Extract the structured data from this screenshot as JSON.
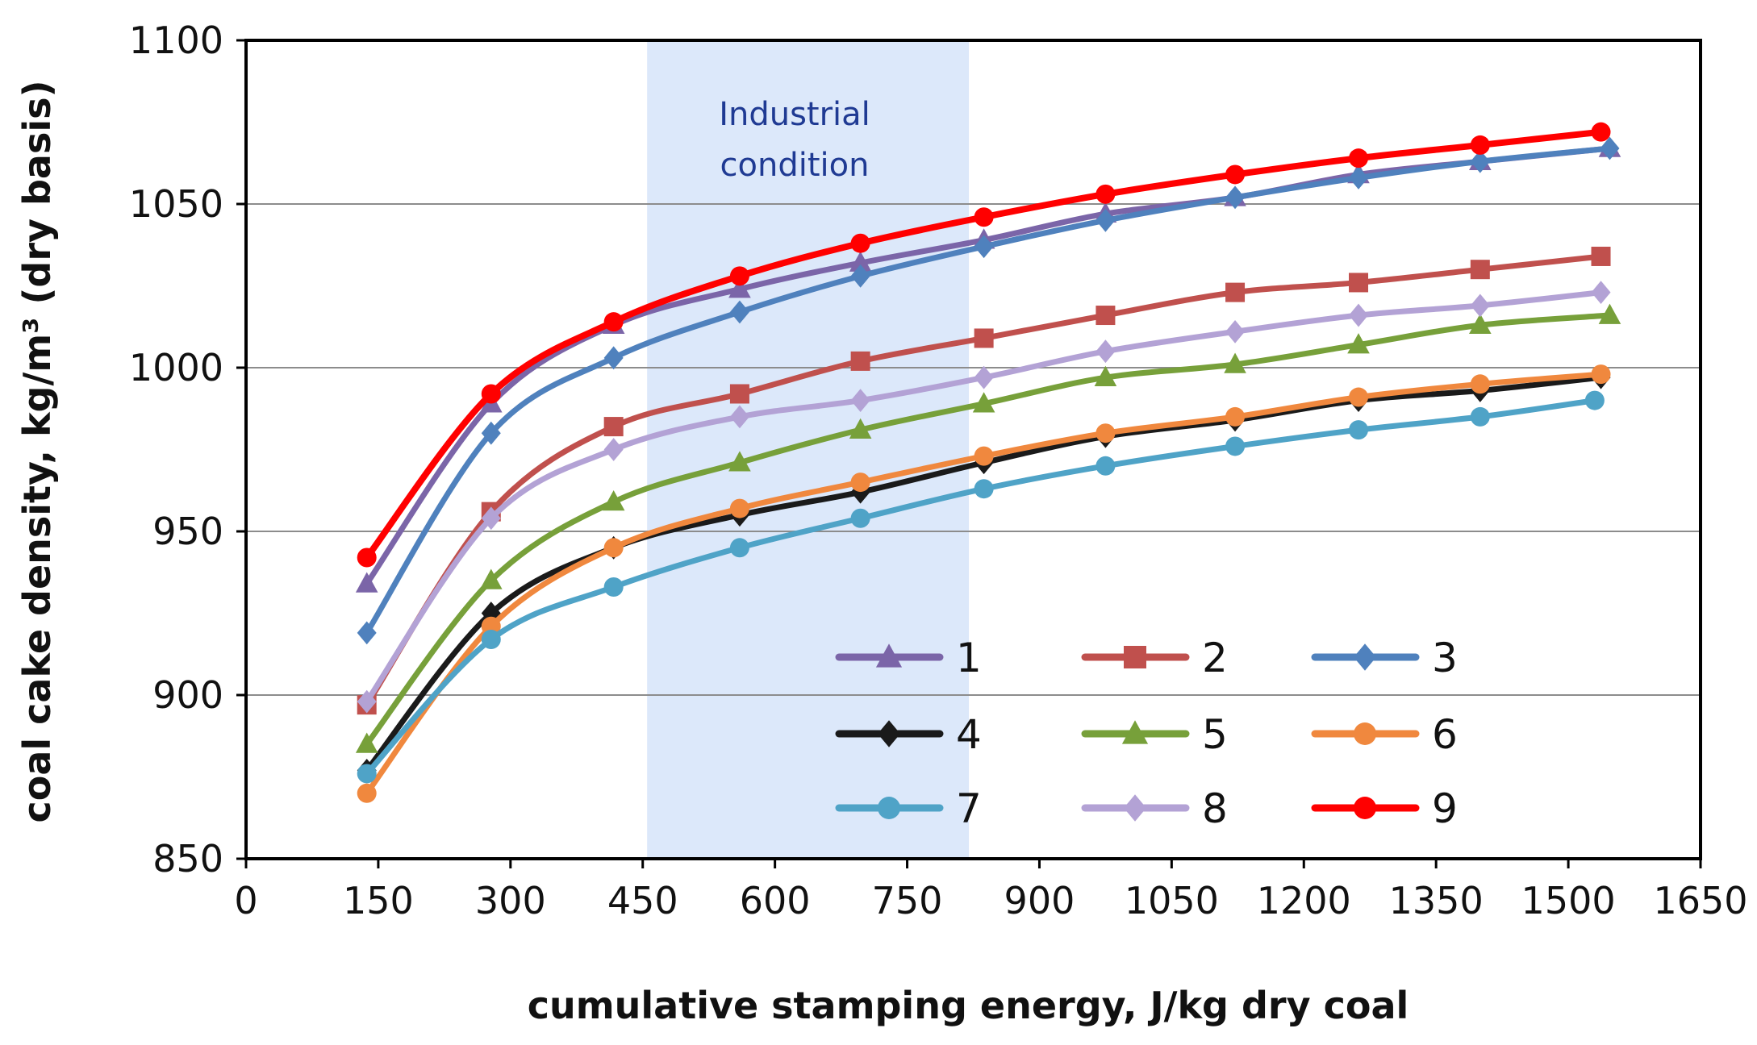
{
  "chart_data": {
    "type": "line",
    "title": "",
    "xlabel": "cumulative stamping energy, J/kg dry coal",
    "ylabel": "coal cake density,  kg/m³ (dry basis)",
    "xlim": [
      0,
      1650
    ],
    "ylim": [
      850,
      1100
    ],
    "x_ticks": [
      "0",
      "150",
      "300",
      "450",
      "600",
      "750",
      "900",
      "1050",
      "1200",
      "1350",
      "1500",
      "1650"
    ],
    "y_ticks": [
      "850",
      "900",
      "950",
      "1000",
      "1050",
      "1100"
    ],
    "grid": "horizontal",
    "legend_position": "bottom-right",
    "shaded_region": {
      "x_start": 455,
      "x_end": 820,
      "label_line1": "Industrial",
      "label_line2": "condition",
      "color": "#dce8fa"
    },
    "series": [
      {
        "name": "1",
        "color": "#7b65a8",
        "marker": "triangle",
        "x": [
          137,
          278,
          417,
          560,
          697,
          837,
          975,
          1122,
          1262,
          1400,
          1547
        ],
        "values": [
          934,
          989,
          1013,
          1024,
          1032,
          1039,
          1047,
          1052,
          1059,
          1063,
          1067
        ]
      },
      {
        "name": "2",
        "color": "#c0504d",
        "marker": "square",
        "x": [
          137,
          278,
          417,
          560,
          697,
          837,
          975,
          1122,
          1262,
          1400,
          1537
        ],
        "values": [
          897,
          956,
          982,
          992,
          1002,
          1009,
          1016,
          1023,
          1026,
          1030,
          1034
        ]
      },
      {
        "name": "3",
        "color": "#4f81bd",
        "marker": "diamond",
        "x": [
          137,
          278,
          417,
          560,
          697,
          837,
          975,
          1122,
          1262,
          1400,
          1547
        ],
        "values": [
          919,
          980,
          1003,
          1017,
          1028,
          1037,
          1045,
          1052,
          1058,
          1063,
          1067
        ]
      },
      {
        "name": "4",
        "color": "#1a1a1a",
        "marker": "diamond",
        "x": [
          137,
          278,
          417,
          560,
          697,
          837,
          975,
          1122,
          1262,
          1400,
          1537
        ],
        "values": [
          877,
          925,
          945,
          955,
          962,
          971,
          979,
          984,
          990,
          993,
          997
        ]
      },
      {
        "name": "5",
        "color": "#77a03a",
        "marker": "triangle",
        "x": [
          137,
          278,
          417,
          560,
          697,
          837,
          975,
          1122,
          1262,
          1400,
          1547
        ],
        "values": [
          885,
          935,
          959,
          971,
          981,
          989,
          997,
          1001,
          1007,
          1013,
          1016
        ]
      },
      {
        "name": "6",
        "color": "#f0883e",
        "marker": "circle",
        "x": [
          137,
          278,
          417,
          560,
          697,
          837,
          975,
          1122,
          1262,
          1400,
          1537
        ],
        "values": [
          870,
          921,
          945,
          957,
          965,
          973,
          980,
          985,
          991,
          995,
          998
        ]
      },
      {
        "name": "7",
        "color": "#4fa3c7",
        "marker": "circle",
        "x": [
          137,
          278,
          417,
          560,
          697,
          837,
          975,
          1122,
          1262,
          1400,
          1530
        ],
        "values": [
          876,
          917,
          933,
          945,
          954,
          963,
          970,
          976,
          981,
          985,
          990
        ]
      },
      {
        "name": "8",
        "color": "#b3a2d5",
        "marker": "diamond",
        "x": [
          137,
          278,
          417,
          560,
          697,
          837,
          975,
          1122,
          1262,
          1400,
          1537
        ],
        "values": [
          898,
          954,
          975,
          985,
          990,
          997,
          1005,
          1011,
          1016,
          1019,
          1023
        ]
      },
      {
        "name": "9",
        "color": "#ff0000",
        "marker": "circle",
        "x": [
          137,
          278,
          417,
          560,
          697,
          837,
          975,
          1122,
          1262,
          1400,
          1537
        ],
        "values": [
          942,
          992,
          1014,
          1028,
          1038,
          1046,
          1053,
          1059,
          1064,
          1068,
          1072
        ]
      }
    ]
  }
}
